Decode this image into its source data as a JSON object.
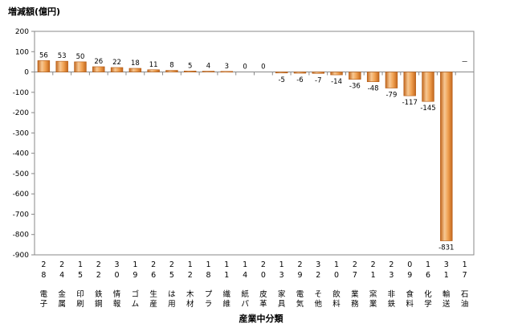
{
  "chart_data": {
    "type": "bar",
    "ylabel": "増減額(億円)",
    "xlabel": "産業中分類",
    "ylim": [
      -900,
      200
    ],
    "yticks": [
      200,
      100,
      0,
      -100,
      -200,
      -300,
      -400,
      -500,
      -600,
      -700,
      -800,
      -900
    ],
    "grid": false,
    "categories": [
      {
        "code": [
          "2",
          "8"
        ],
        "name": [
          "電",
          "子"
        ]
      },
      {
        "code": [
          "2",
          "4"
        ],
        "name": [
          "金",
          "属"
        ]
      },
      {
        "code": [
          "1",
          "5"
        ],
        "name": [
          "印",
          "刷"
        ]
      },
      {
        "code": [
          "2",
          "2"
        ],
        "name": [
          "鉄",
          "鋼"
        ]
      },
      {
        "code": [
          "3",
          "0"
        ],
        "name": [
          "情",
          "報"
        ]
      },
      {
        "code": [
          "1",
          "9"
        ],
        "name": [
          "ゴ",
          "ム"
        ]
      },
      {
        "code": [
          "2",
          "6"
        ],
        "name": [
          "生",
          "産"
        ]
      },
      {
        "code": [
          "2",
          "5"
        ],
        "name": [
          "は",
          "用"
        ]
      },
      {
        "code": [
          "1",
          "2"
        ],
        "name": [
          "木",
          "材"
        ]
      },
      {
        "code": [
          "1",
          "8"
        ],
        "name": [
          "プ",
          "ラ"
        ]
      },
      {
        "code": [
          "1",
          "1"
        ],
        "name": [
          "繊",
          "維"
        ]
      },
      {
        "code": [
          "1",
          "4"
        ],
        "name": [
          "紙",
          "パ"
        ]
      },
      {
        "code": [
          "2",
          "0"
        ],
        "name": [
          "皮",
          "革"
        ]
      },
      {
        "code": [
          "1",
          "3"
        ],
        "name": [
          "家",
          "具"
        ]
      },
      {
        "code": [
          "2",
          "9"
        ],
        "name": [
          "電",
          "気"
        ]
      },
      {
        "code": [
          "3",
          "2"
        ],
        "name": [
          "そ",
          "他"
        ]
      },
      {
        "code": [
          "1",
          "0"
        ],
        "name": [
          "飲",
          "料"
        ]
      },
      {
        "code": [
          "2",
          "7"
        ],
        "name": [
          "業",
          "務"
        ]
      },
      {
        "code": [
          "2",
          "1"
        ],
        "name": [
          "窯",
          "業"
        ]
      },
      {
        "code": [
          "2",
          "3"
        ],
        "name": [
          "非",
          "鉄"
        ]
      },
      {
        "code": [
          "0",
          "9"
        ],
        "name": [
          "食",
          "料"
        ]
      },
      {
        "code": [
          "1",
          "6"
        ],
        "name": [
          "化",
          "学"
        ]
      },
      {
        "code": [
          "3",
          "1"
        ],
        "name": [
          "輸",
          "送"
        ]
      },
      {
        "code": [
          "1",
          "7"
        ],
        "name": [
          "石",
          "油"
        ]
      }
    ],
    "values": [
      56,
      53,
      50,
      26,
      22,
      18,
      11,
      8,
      5,
      4,
      3,
      0,
      0,
      -5,
      -6,
      -7,
      -14,
      -36,
      -48,
      -79,
      -117,
      -145,
      -831,
      null
    ],
    "data_labels": [
      "56",
      "53",
      "50",
      "26",
      "22",
      "18",
      "11",
      "8",
      "5",
      "4",
      "3",
      "0",
      "0",
      "-5",
      "-6",
      "-7",
      "-14",
      "-36",
      "-48",
      "-79",
      "-117",
      "-145",
      "-831",
      "－"
    ],
    "colors": {
      "bar_light": "#f7c893",
      "bar_mid": "#f0a050",
      "bar_dark": "#c2661c",
      "bar_edge": "#b35a14",
      "axis": "#888888"
    }
  }
}
